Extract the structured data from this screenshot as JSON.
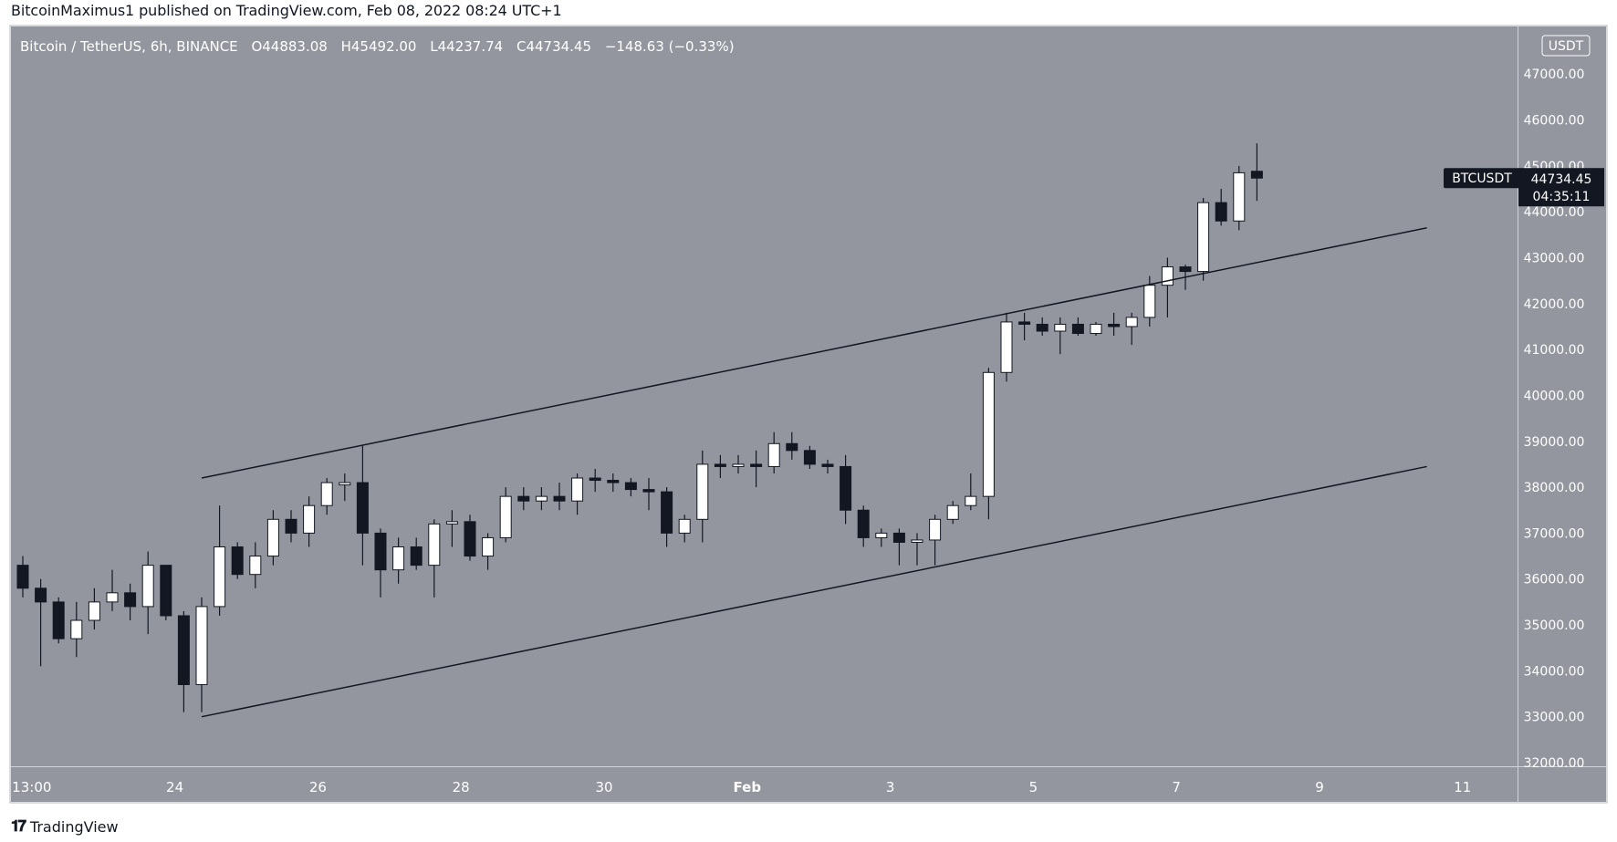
{
  "header": {
    "published_by": "BitcoinMaximus1 published on TradingView.com, Feb 08, 2022 08:24 UTC+1"
  },
  "footer": {
    "brand": "TradingView"
  },
  "chart_data": {
    "type": "candlestick",
    "symbol_title": "Bitcoin / TetherUS, 6h, BINANCE",
    "ohlc_header": {
      "o_label": "O",
      "o_value": "44883.08",
      "h_label": "H",
      "h_value": "45492.00",
      "l_label": "L",
      "l_value": "44237.74",
      "c_label": "C",
      "c_value": "44734.45",
      "change": "−148.63 (−0.33%)"
    },
    "currency_badge": "USDT",
    "ylim": [
      32000,
      47400
    ],
    "y_ticks": [
      {
        "value": 32000,
        "label": "32000.00"
      },
      {
        "value": 33000,
        "label": "33000.00"
      },
      {
        "value": 34000,
        "label": "34000.00"
      },
      {
        "value": 35000,
        "label": "35000.00"
      },
      {
        "value": 36000,
        "label": "36000.00"
      },
      {
        "value": 37000,
        "label": "37000.00"
      },
      {
        "value": 38000,
        "label": "38000.00"
      },
      {
        "value": 39000,
        "label": "39000.00"
      },
      {
        "value": 40000,
        "label": "40000.00"
      },
      {
        "value": 41000,
        "label": "41000.00"
      },
      {
        "value": 42000,
        "label": "42000.00"
      },
      {
        "value": 43000,
        "label": "43000.00"
      },
      {
        "value": 44000,
        "label": "44000.00"
      },
      {
        "value": 45000,
        "label": "45000.00"
      },
      {
        "value": 46000,
        "label": "46000.00"
      },
      {
        "value": 47000,
        "label": "47000.00"
      }
    ],
    "x_ticks": [
      {
        "bar": 0.5,
        "label": "13:00"
      },
      {
        "bar": 8.5,
        "label": "24"
      },
      {
        "bar": 16.5,
        "label": "26"
      },
      {
        "bar": 24.5,
        "label": "28"
      },
      {
        "bar": 32.5,
        "label": "30"
      },
      {
        "bar": 40.5,
        "label": "Feb"
      },
      {
        "bar": 48.5,
        "label": "3"
      },
      {
        "bar": 56.5,
        "label": "5"
      },
      {
        "bar": 64.5,
        "label": "7"
      },
      {
        "bar": 72.5,
        "label": "9"
      },
      {
        "bar": 80.5,
        "label": "11"
      }
    ],
    "last_price_label": {
      "ticker": "BTCUSDT",
      "price": "44734.45",
      "countdown": "04:35:11"
    },
    "channel_lines": [
      {
        "name": "upper",
        "from": {
          "bar": 10,
          "price": 38200
        },
        "to": {
          "bar": 78.5,
          "price": 43650
        }
      },
      {
        "name": "lower",
        "from": {
          "bar": 10,
          "price": 33000
        },
        "to": {
          "bar": 78.5,
          "price": 38450
        }
      }
    ],
    "candles": [
      {
        "o": 36300,
        "h": 36500,
        "l": 35600,
        "c": 35800
      },
      {
        "o": 35800,
        "h": 36000,
        "l": 34100,
        "c": 35500
      },
      {
        "o": 35500,
        "h": 35600,
        "l": 34600,
        "c": 34700
      },
      {
        "o": 34700,
        "h": 35500,
        "l": 34300,
        "c": 35100
      },
      {
        "o": 35100,
        "h": 35800,
        "l": 34900,
        "c": 35500
      },
      {
        "o": 35500,
        "h": 36200,
        "l": 35300,
        "c": 35700
      },
      {
        "o": 35700,
        "h": 35900,
        "l": 35100,
        "c": 35400
      },
      {
        "o": 35400,
        "h": 36600,
        "l": 34800,
        "c": 36300
      },
      {
        "o": 36300,
        "h": 36300,
        "l": 35100,
        "c": 35200
      },
      {
        "o": 35200,
        "h": 35300,
        "l": 33100,
        "c": 33700
      },
      {
        "o": 33700,
        "h": 35600,
        "l": 33100,
        "c": 35400
      },
      {
        "o": 35400,
        "h": 37600,
        "l": 35200,
        "c": 36700
      },
      {
        "o": 36700,
        "h": 36800,
        "l": 36000,
        "c": 36100
      },
      {
        "o": 36100,
        "h": 36800,
        "l": 35800,
        "c": 36500
      },
      {
        "o": 36500,
        "h": 37500,
        "l": 36300,
        "c": 37300
      },
      {
        "o": 37300,
        "h": 37500,
        "l": 36800,
        "c": 37000
      },
      {
        "o": 37000,
        "h": 37800,
        "l": 36700,
        "c": 37600
      },
      {
        "o": 37600,
        "h": 38200,
        "l": 37400,
        "c": 38100
      },
      {
        "o": 38050,
        "h": 38300,
        "l": 37700,
        "c": 38100
      },
      {
        "o": 38100,
        "h": 38900,
        "l": 36300,
        "c": 37000
      },
      {
        "o": 37000,
        "h": 37100,
        "l": 35600,
        "c": 36200
      },
      {
        "o": 36200,
        "h": 36900,
        "l": 35900,
        "c": 36700
      },
      {
        "o": 36700,
        "h": 36900,
        "l": 36200,
        "c": 36300
      },
      {
        "o": 36300,
        "h": 37300,
        "l": 35600,
        "c": 37200
      },
      {
        "o": 37200,
        "h": 37500,
        "l": 36700,
        "c": 37250
      },
      {
        "o": 37250,
        "h": 37400,
        "l": 36400,
        "c": 36500
      },
      {
        "o": 36500,
        "h": 37000,
        "l": 36200,
        "c": 36900
      },
      {
        "o": 36900,
        "h": 38000,
        "l": 36800,
        "c": 37800
      },
      {
        "o": 37800,
        "h": 38000,
        "l": 37500,
        "c": 37700
      },
      {
        "o": 37700,
        "h": 38000,
        "l": 37500,
        "c": 37800
      },
      {
        "o": 37800,
        "h": 38100,
        "l": 37500,
        "c": 37700
      },
      {
        "o": 37700,
        "h": 38300,
        "l": 37400,
        "c": 38200
      },
      {
        "o": 38200,
        "h": 38400,
        "l": 37900,
        "c": 38150
      },
      {
        "o": 38150,
        "h": 38300,
        "l": 37900,
        "c": 38100
      },
      {
        "o": 38100,
        "h": 38200,
        "l": 37800,
        "c": 37950
      },
      {
        "o": 37950,
        "h": 38200,
        "l": 37500,
        "c": 37900
      },
      {
        "o": 37900,
        "h": 38000,
        "l": 36700,
        "c": 37000
      },
      {
        "o": 37000,
        "h": 37400,
        "l": 36800,
        "c": 37300
      },
      {
        "o": 37300,
        "h": 38800,
        "l": 36800,
        "c": 38500
      },
      {
        "o": 38500,
        "h": 38700,
        "l": 38200,
        "c": 38450
      },
      {
        "o": 38450,
        "h": 38700,
        "l": 38300,
        "c": 38500
      },
      {
        "o": 38500,
        "h": 38800,
        "l": 38000,
        "c": 38450
      },
      {
        "o": 38450,
        "h": 39200,
        "l": 38300,
        "c": 38950
      },
      {
        "o": 38950,
        "h": 39200,
        "l": 38600,
        "c": 38800
      },
      {
        "o": 38800,
        "h": 38900,
        "l": 38400,
        "c": 38500
      },
      {
        "o": 38500,
        "h": 38600,
        "l": 38300,
        "c": 38450
      },
      {
        "o": 38450,
        "h": 38700,
        "l": 37200,
        "c": 37500
      },
      {
        "o": 37500,
        "h": 37600,
        "l": 36700,
        "c": 36900
      },
      {
        "o": 36900,
        "h": 37100,
        "l": 36700,
        "c": 37000
      },
      {
        "o": 37000,
        "h": 37100,
        "l": 36300,
        "c": 36800
      },
      {
        "o": 36800,
        "h": 37000,
        "l": 36300,
        "c": 36850
      },
      {
        "o": 36850,
        "h": 37400,
        "l": 36300,
        "c": 37300
      },
      {
        "o": 37300,
        "h": 37700,
        "l": 37200,
        "c": 37600
      },
      {
        "o": 37600,
        "h": 38300,
        "l": 37500,
        "c": 37800
      },
      {
        "o": 37800,
        "h": 40600,
        "l": 37300,
        "c": 40500
      },
      {
        "o": 40500,
        "h": 41800,
        "l": 40300,
        "c": 41600
      },
      {
        "o": 41600,
        "h": 41800,
        "l": 41200,
        "c": 41550
      },
      {
        "o": 41550,
        "h": 41700,
        "l": 41300,
        "c": 41400
      },
      {
        "o": 41400,
        "h": 41700,
        "l": 40900,
        "c": 41550
      },
      {
        "o": 41550,
        "h": 41700,
        "l": 41300,
        "c": 41350
      },
      {
        "o": 41350,
        "h": 41600,
        "l": 41300,
        "c": 41550
      },
      {
        "o": 41550,
        "h": 41800,
        "l": 41300,
        "c": 41500
      },
      {
        "o": 41500,
        "h": 41800,
        "l": 41100,
        "c": 41700
      },
      {
        "o": 41700,
        "h": 42600,
        "l": 41500,
        "c": 42400
      },
      {
        "o": 42400,
        "h": 43000,
        "l": 41700,
        "c": 42800
      },
      {
        "o": 42800,
        "h": 42850,
        "l": 42300,
        "c": 42700
      },
      {
        "o": 42700,
        "h": 44300,
        "l": 42500,
        "c": 44200
      },
      {
        "o": 44200,
        "h": 44500,
        "l": 43700,
        "c": 43800
      },
      {
        "o": 43800,
        "h": 45000,
        "l": 43600,
        "c": 44850
      },
      {
        "o": 44883.08,
        "h": 45492.0,
        "l": 44237.74,
        "c": 44734.45
      }
    ]
  }
}
